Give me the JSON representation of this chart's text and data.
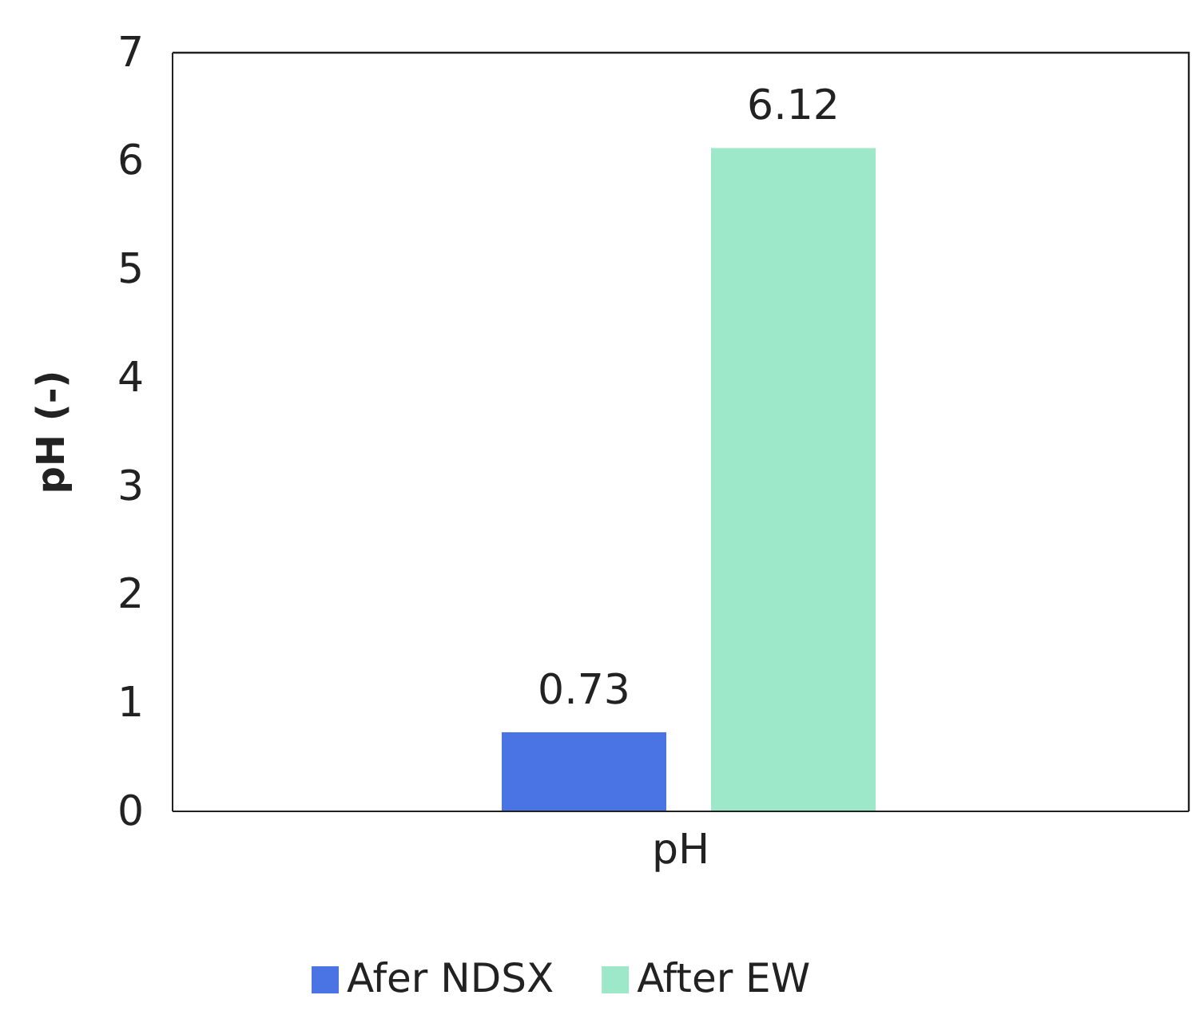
{
  "chart_data": {
    "type": "bar",
    "ylabel": "pH (-)",
    "categories": [
      "pH"
    ],
    "series": [
      {
        "name": "Afer NDSX",
        "color": "#4a73e3",
        "values": [
          0.73
        ]
      },
      {
        "name": "After EW",
        "color": "#9de8c8",
        "values": [
          6.12
        ]
      }
    ],
    "ylim": [
      0,
      7
    ],
    "yticks": [
      0,
      1,
      2,
      3,
      4,
      5,
      6,
      7
    ],
    "data_labels": true,
    "legend": "bottom",
    "grid": false
  }
}
